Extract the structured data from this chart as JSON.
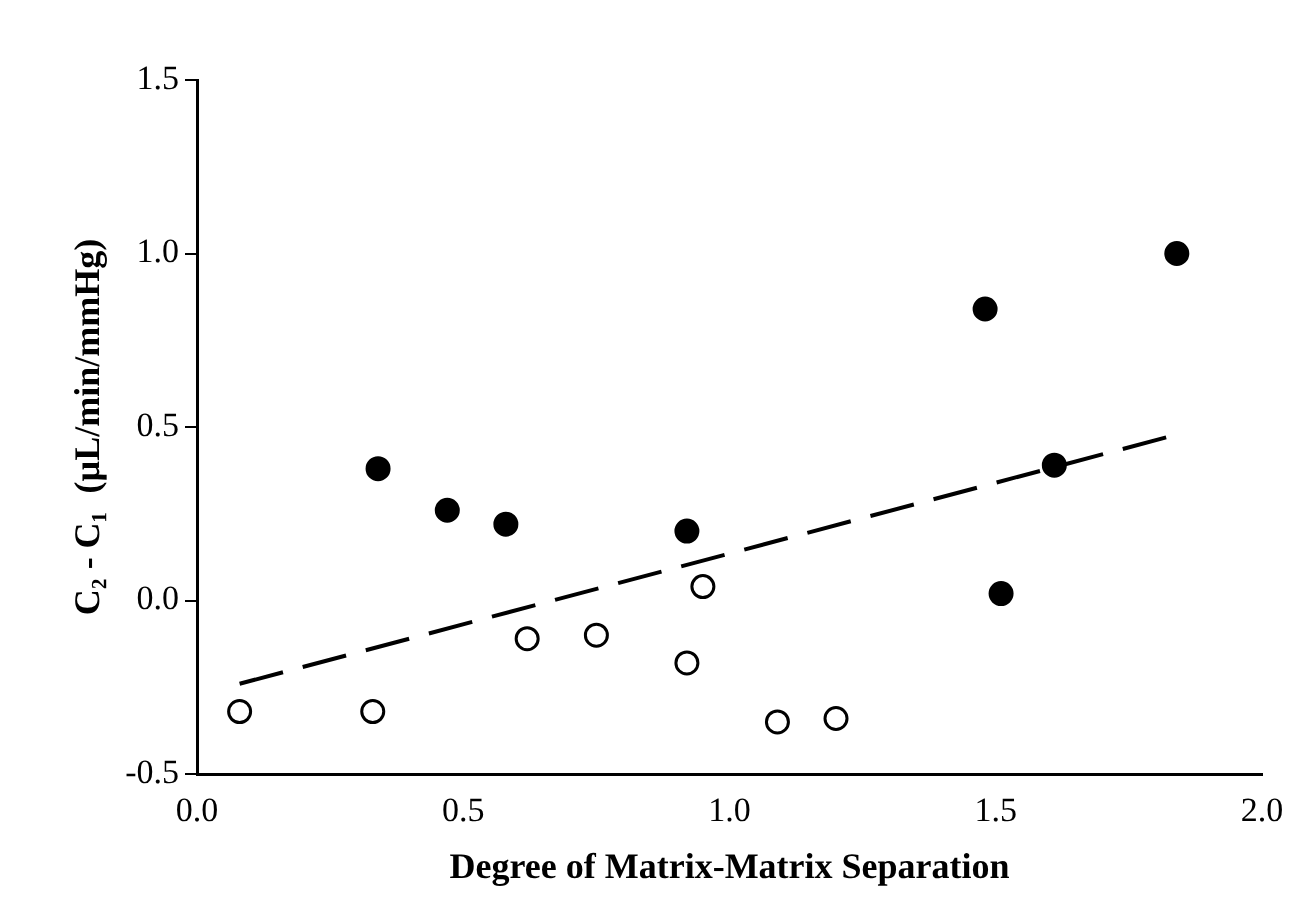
{
  "chart_data": {
    "type": "scatter",
    "xlabel": "Degree of Matrix-Matrix Separation",
    "ylabel": "C₂ - C₁  (µL/min/mmHg)",
    "xlim": [
      0,
      2
    ],
    "xticks": [
      {
        "value": 0,
        "label": "0.0"
      },
      {
        "value": 0.5,
        "label": "0.5"
      },
      {
        "value": 1,
        "label": "1.0"
      },
      {
        "value": 1.5,
        "label": "1.5"
      },
      {
        "value": 2,
        "label": "2.0"
      }
    ],
    "ylim": [
      -0.5,
      1.5
    ],
    "yticks": [
      {
        "value": -0.5,
        "label": "-0.5"
      },
      {
        "value": 0,
        "label": "0.0"
      },
      {
        "value": 0.5,
        "label": "0.5"
      },
      {
        "value": 1,
        "label": "1.0"
      },
      {
        "value": 1.5,
        "label": "1.5"
      }
    ],
    "grid": false,
    "legend": false,
    "marker": "circle",
    "series": [
      {
        "color": "#000000",
        "x": [
          0.34,
          0.47,
          0.58,
          0.92,
          1.48,
          1.51,
          1.61,
          1.84
        ],
        "values": [
          0.38,
          0.26,
          0.22,
          0.2,
          0.84,
          0.02,
          0.39,
          1.0
        ]
      },
      {
        "color": "#ffffff",
        "x": [
          0.08,
          0.33,
          0.62,
          0.75,
          0.92,
          0.95,
          1.09,
          1.2
        ],
        "values": [
          -0.32,
          -0.32,
          -0.11,
          -0.1,
          -0.18,
          0.04,
          -0.35,
          -0.34
        ]
      },
      {
        "type": "line",
        "color": "#000000",
        "line_style": "dashed",
        "marker": "none",
        "x": [
          0.08,
          1.82
        ],
        "values": [
          -0.24,
          0.47
        ]
      }
    ]
  }
}
